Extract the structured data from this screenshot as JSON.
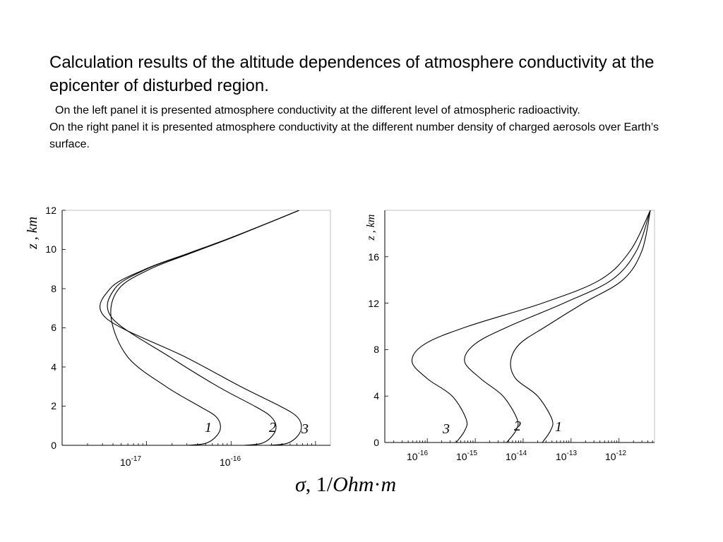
{
  "slide": {
    "title": "Calculation results of the altitude dependences of atmosphere conductivity at the epicenter of disturbed region.",
    "paragraph_1": "On the left panel it is presented atmosphere conductivity at the different level of atmospheric radioactivity.",
    "paragraph_2": "On the right panel it is presented atmosphere conductivity at the different number density of charged aerosols over Earth’s surface."
  },
  "x_axis_label": {
    "sigma": "σ",
    "one": "1",
    "slash": "/",
    "ohm": "Ohm",
    "dot": "·",
    "m": "m"
  },
  "chart_data": [
    {
      "type": "line",
      "panel": "left",
      "xlabel": "σ, 1/Ohm·m",
      "ylabel": "z , km",
      "x_scale": "log",
      "xlim": [
        1e-18,
        1.5e-15
      ],
      "ylim": [
        0,
        12
      ],
      "x_ticks": [
        {
          "base": "10",
          "exp": "-17"
        },
        {
          "base": "10",
          "exp": "-16"
        }
      ],
      "y_ticks": [
        "0",
        "2",
        "4",
        "6",
        "8",
        "10",
        "12"
      ],
      "grid": false,
      "series": [
        {
          "name": "1",
          "x": [
            3e-17,
            5e-17,
            6.8e-17,
            7.5e-17,
            6.5e-17,
            4.2e-17,
            1.7e-17,
            6e-18,
            3.8e-18,
            4.7e-18,
            1.1e-17,
            3.3e-17,
            8.9e-17,
            2.4e-16,
            6.4e-16
          ],
          "y": [
            0,
            0.1,
            0.5,
            1.0,
            1.5,
            2.0,
            3.0,
            4.5,
            6.5,
            8.0,
            9.0,
            9.8,
            10.5,
            11.25,
            12
          ]
        },
        {
          "name": "2",
          "x": [
            1.4e-16,
            2.3e-16,
            3.1e-16,
            3.4e-16,
            2.9e-16,
            1.9e-16,
            7e-17,
            1.9e-17,
            3.9e-18,
            4.2e-18,
            1e-17,
            3.2e-17,
            8.8e-17,
            2.4e-16,
            6.4e-16
          ],
          "y": [
            0,
            0.1,
            0.5,
            1.0,
            1.5,
            2.0,
            3.0,
            4.5,
            6.5,
            8.0,
            9.0,
            9.8,
            10.5,
            11.25,
            12
          ]
        },
        {
          "name": "3",
          "x": [
            2.8e-16,
            4.6e-16,
            6.2e-16,
            6.8e-16,
            5.9e-16,
            3.8e-16,
            1.3e-16,
            2.9e-17,
            3.3e-18,
            3.7e-18,
            9.7e-18,
            3.1e-17,
            8.6e-17,
            2.4e-16,
            6.4e-16
          ],
          "y": [
            0,
            0.1,
            0.5,
            1.0,
            1.5,
            2.0,
            3.0,
            4.5,
            6.5,
            8.0,
            9.0,
            9.8,
            10.5,
            11.25,
            12
          ]
        }
      ],
      "annotations": [
        {
          "text": "1",
          "x": 4.5e-17,
          "y": 0.8
        },
        {
          "text": "2",
          "x": 1.6e-16,
          "y": 0.8
        },
        {
          "text": "3",
          "x": 2.8e-16,
          "y": 0.7
        }
      ]
    },
    {
      "type": "line",
      "panel": "right",
      "xlabel": "σ, 1/Ohm·m",
      "ylabel": "z , km",
      "x_scale": "log",
      "xlim": [
        1.3e-17,
        5.5e-12
      ],
      "ylim": [
        0,
        20
      ],
      "x_ticks": [
        {
          "base": "10",
          "exp": "-16"
        },
        {
          "base": "10",
          "exp": "-15"
        },
        {
          "base": "10",
          "exp": "-14"
        },
        {
          "base": "10",
          "exp": "-13"
        },
        {
          "base": "10",
          "exp": "-12"
        }
      ],
      "y_ticks": [
        "0",
        "4",
        "8",
        "12",
        "16"
      ],
      "grid": false,
      "series": [
        {
          "name": "1",
          "x": [
            2.5e-14,
            3.7e-14,
            4e-14,
            2e-14,
            7e-15,
            5.5e-15,
            8.5e-15,
            3e-14,
            1.8e-13,
            1.2e-12,
            3e-12,
            4.5e-12
          ],
          "y": [
            0,
            1.0,
            2.0,
            4.0,
            5.5,
            7.0,
            8.5,
            10.0,
            12.0,
            14.0,
            16.5,
            20
          ]
        },
        {
          "name": "2",
          "x": [
            4.5e-15,
            7e-15,
            7.5e-15,
            3.8e-15,
            1.3e-15,
            6e-16,
            1e-15,
            5e-15,
            7e-14,
            7e-13,
            2.3e-12,
            4.5e-12
          ],
          "y": [
            0,
            1.0,
            2.0,
            4.0,
            5.5,
            7.0,
            8.5,
            10.0,
            12.0,
            14.0,
            16.5,
            20
          ]
        },
        {
          "name": "3",
          "x": [
            4e-16,
            6e-16,
            6.5e-16,
            3.3e-16,
            1e-16,
            4.8e-17,
            9e-17,
            7e-16,
            2.5e-14,
            4e-13,
            1.7e-12,
            4.5e-12
          ],
          "y": [
            0,
            1.0,
            2.0,
            4.0,
            5.5,
            7.0,
            8.5,
            10.0,
            12.0,
            14.0,
            16.5,
            20
          ]
        }
      ],
      "annotations": [
        {
          "text": "1",
          "x": 6.5e-14,
          "y": 1.3
        },
        {
          "text": "2",
          "x": 1.2e-14,
          "y": 1.3
        },
        {
          "text": "3",
          "x": 3.8e-16,
          "y": 1.2
        }
      ]
    }
  ]
}
